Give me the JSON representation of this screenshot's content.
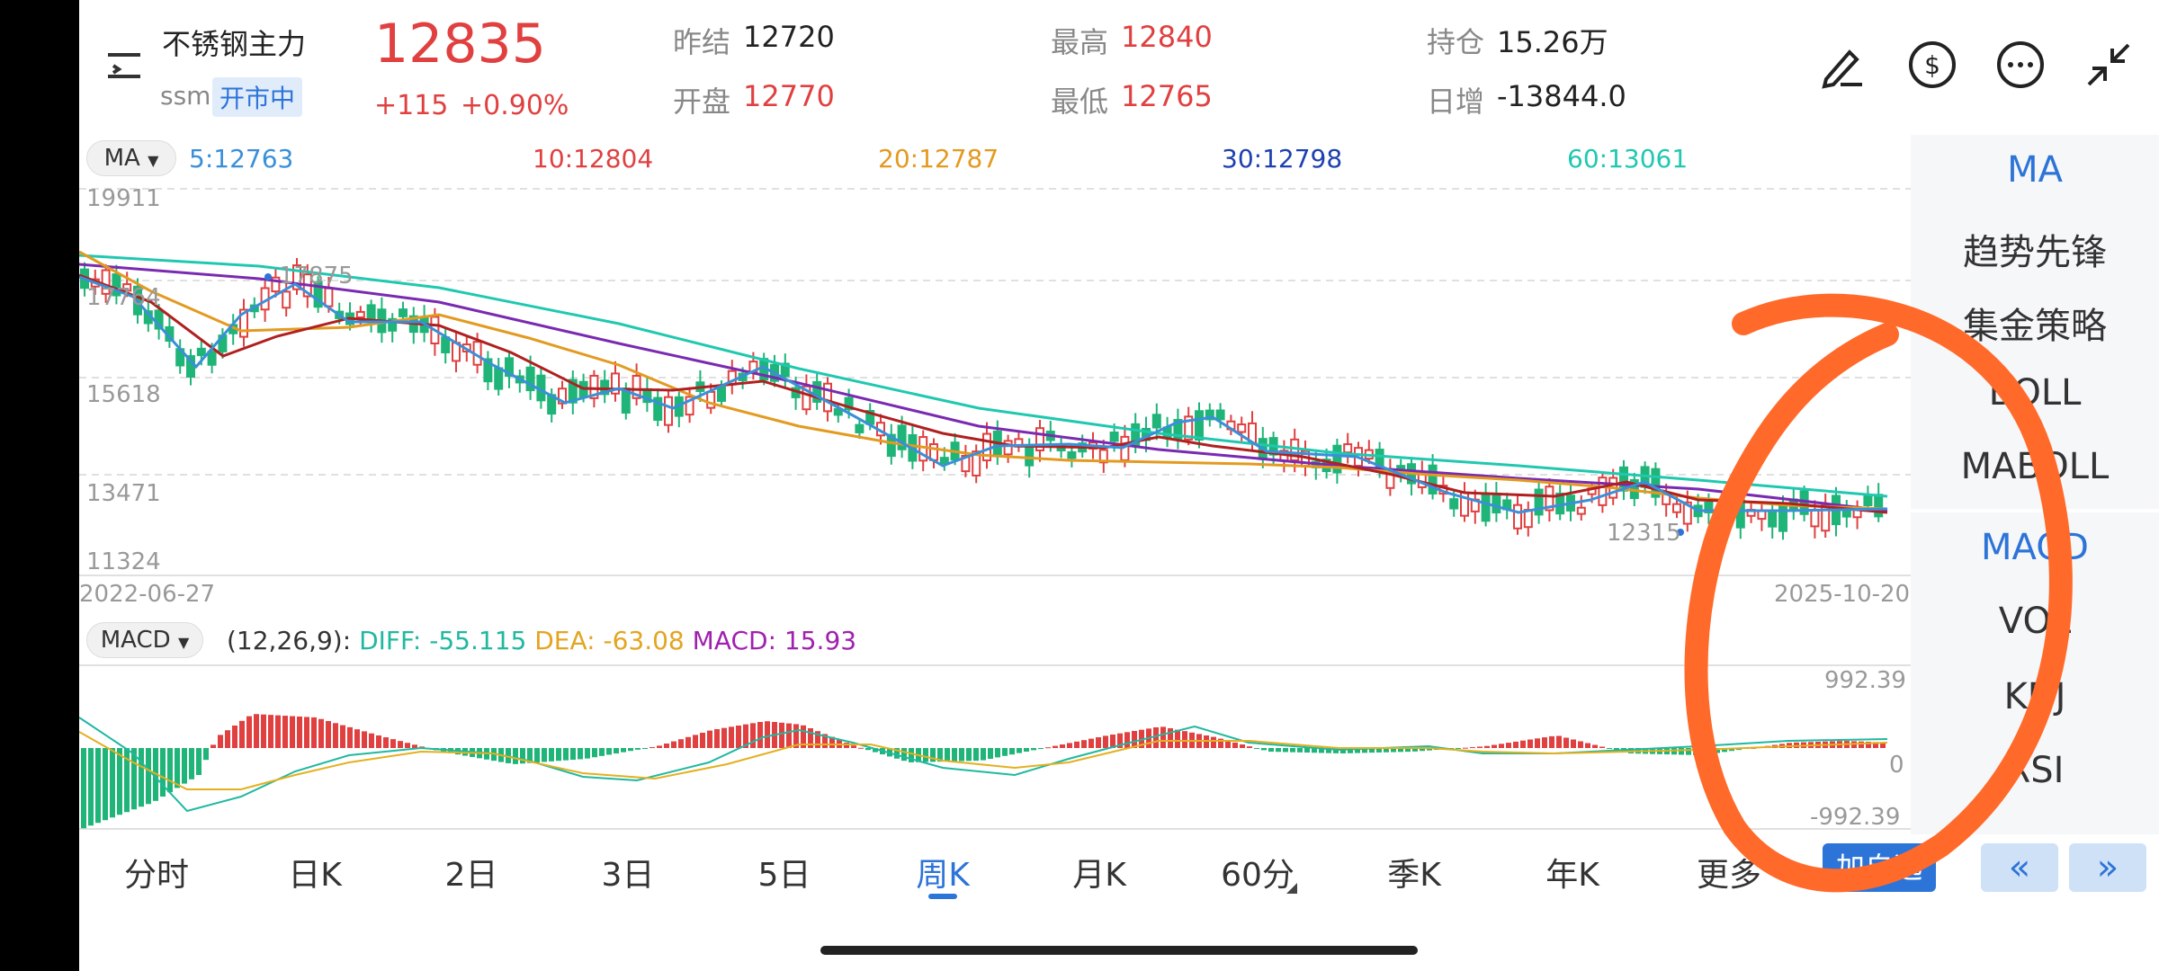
{
  "header": {
    "name": "不锈钢主力",
    "code": "ssm",
    "market_status": "开市中",
    "price": "12835",
    "change": "+115",
    "change_pct": "+0.90%",
    "stats": [
      {
        "label": "昨结",
        "value": "12720"
      },
      {
        "label": "开盘",
        "value": "12770"
      },
      {
        "label": "最高",
        "value": "12840"
      },
      {
        "label": "最低",
        "value": "12765"
      },
      {
        "label": "持仓",
        "value": "15.26万"
      },
      {
        "label": "日增",
        "value": "-13844.0"
      }
    ],
    "icons": [
      "draw-icon",
      "currency-exchange-icon",
      "more-icon",
      "collapse-icon"
    ]
  },
  "ma_bar": {
    "selector": "MA",
    "items": [
      {
        "label": "5:12763",
        "color": "#3a8fd9"
      },
      {
        "label": "10:12804",
        "color": "#e04040"
      },
      {
        "label": "20:12787",
        "color": "#e39a20"
      },
      {
        "label": "30:12798",
        "color": "#1e40b0"
      },
      {
        "label": "60:13061",
        "color": "#20c8b0"
      }
    ]
  },
  "main_chart": {
    "y_labels": [
      "19911",
      "17764",
      "15618",
      "13471",
      "11324"
    ],
    "high_marker": "17875",
    "low_marker": "12315",
    "date_start": "2022-06-27",
    "date_end": "2025-10-20"
  },
  "macd_bar": {
    "selector": "MACD",
    "params": "(12,26,9):",
    "diff": "DIFF: -55.115",
    "dea": "DEA: -63.08",
    "macd": "MACD: 15.93",
    "y_top": "992.39",
    "y_zero": "0",
    "y_bottom": "-992.39"
  },
  "right_panel": {
    "items": [
      "MA",
      "趋势先锋",
      "集金策略",
      "BOLL",
      "MABOLL",
      "MACD",
      "VOL",
      "KDJ",
      "RSI"
    ]
  },
  "bottom_tabs": {
    "items": [
      "分时",
      "日K",
      "2日",
      "3日",
      "5日",
      "周K",
      "月K",
      "60分",
      "季K",
      "年K",
      "更多"
    ],
    "active": "周K",
    "add_watch": "加自选",
    "prev": "«",
    "next": "»"
  },
  "colors": {
    "up": "#e04040",
    "down": "#1fb478",
    "accent": "#2d74d8",
    "annotation": "#ff6a2a"
  }
}
